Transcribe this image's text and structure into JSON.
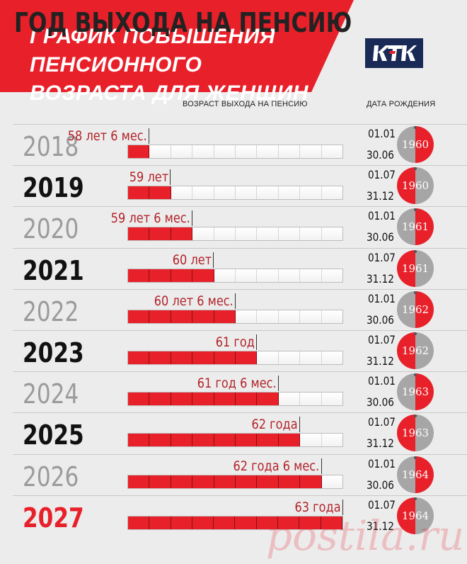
{
  "title_lines": [
    "ГРАФИК ПОВЫШЕНИЯ ПЕНСИОННОГО",
    "ВОЗРАСТА ДЛЯ ЖЕНЩИН"
  ],
  "logo": {
    "text": "КТК",
    "icon": "ktk-logo",
    "bg_color": "#1a2a57"
  },
  "columns": {
    "year": "ГОД ВЫХОДА НА ПЕНСИЮ",
    "age": "ВОЗРАСТ ВЫХОДА НА ПЕНСИЮ",
    "birth": "ДАТА РОЖДЕНИЯ"
  },
  "colors": {
    "red": "#e8202a",
    "gray": "#a6a6a6",
    "dark": "#111111"
  },
  "rows": [
    {
      "year": "2018",
      "year_style": "gray",
      "age": "58 лет 6 мес.",
      "filled": 1,
      "d1": "01.01",
      "d2": "30.06",
      "birth_year": "1960",
      "circle": "gray-red"
    },
    {
      "year": "2019",
      "year_style": "black",
      "age": "59 лет",
      "filled": 2,
      "d1": "01.07",
      "d2": "31.12",
      "birth_year": "1960",
      "circle": "red-gray"
    },
    {
      "year": "2020",
      "year_style": "gray",
      "age": "59 лет 6 мес.",
      "filled": 3,
      "d1": "01.01",
      "d2": "30.06",
      "birth_year": "1961",
      "circle": "gray-red"
    },
    {
      "year": "2021",
      "year_style": "black",
      "age": "60 лет",
      "filled": 4,
      "d1": "01.07",
      "d2": "31.12",
      "birth_year": "1961",
      "circle": "red-gray"
    },
    {
      "year": "2022",
      "year_style": "gray",
      "age": "60 лет 6 мес.",
      "filled": 5,
      "d1": "01.01",
      "d2": "30.06",
      "birth_year": "1962",
      "circle": "gray-red"
    },
    {
      "year": "2023",
      "year_style": "black",
      "age": "61 год",
      "filled": 6,
      "d1": "01.07",
      "d2": "31.12",
      "birth_year": "1962",
      "circle": "red-gray"
    },
    {
      "year": "2024",
      "year_style": "gray",
      "age": "61 год 6 мес.",
      "filled": 7,
      "d1": "01.01",
      "d2": "30.06",
      "birth_year": "1963",
      "circle": "gray-red"
    },
    {
      "year": "2025",
      "year_style": "black",
      "age": "62 года",
      "filled": 8,
      "d1": "01.07",
      "d2": "31.12",
      "birth_year": "1963",
      "circle": "red-gray"
    },
    {
      "year": "2026",
      "year_style": "gray",
      "age": "62 года 6 мес.",
      "filled": 9,
      "d1": "01.01",
      "d2": "30.06",
      "birth_year": "1964",
      "circle": "gray-red"
    },
    {
      "year": "2027",
      "year_style": "red",
      "age": "63 года",
      "filled": 10,
      "d1": "01.07",
      "d2": "31.12",
      "birth_year": "1964",
      "circle": "red-gray"
    }
  ],
  "segments_total": 10,
  "watermark": "postila.ru"
}
